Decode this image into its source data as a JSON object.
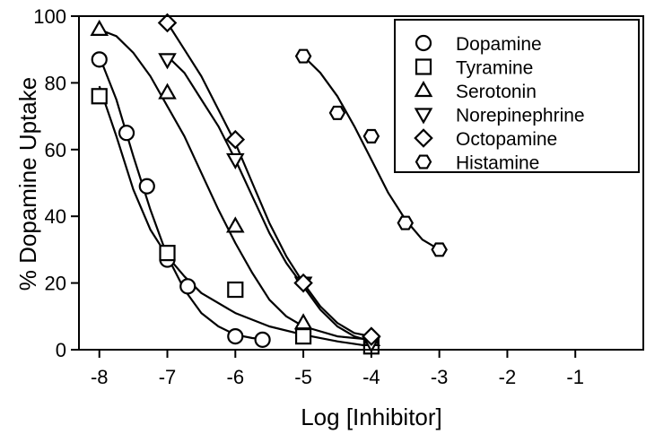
{
  "chart_data": {
    "type": "scatter",
    "title": "",
    "xlabel": "Log [Inhibitor]",
    "ylabel": "% Dopamine Uptake",
    "xlim": [
      -8.3,
      0
    ],
    "ylim": [
      0,
      100
    ],
    "xticks": [
      -8,
      -7,
      -6,
      -5,
      -4,
      -3,
      -2,
      -1
    ],
    "xtick_labels": [
      "-8",
      "-7",
      "-6",
      "-5",
      "-4",
      "-3",
      "-2",
      "-1"
    ],
    "yticks": [
      0,
      20,
      40,
      60,
      80,
      100
    ],
    "ytick_labels": [
      "0",
      "20",
      "40",
      "60",
      "80",
      "100"
    ],
    "grid": false,
    "legend_position": "top-right",
    "series": [
      {
        "name": "Dopamine",
        "marker": "circle",
        "points": [
          [
            -8,
            87
          ],
          [
            -7.6,
            65
          ],
          [
            -7.3,
            49
          ],
          [
            -7,
            27
          ],
          [
            -6.7,
            19
          ],
          [
            -6,
            4
          ],
          [
            -5.6,
            3
          ]
        ],
        "curve": [
          [
            -8,
            88
          ],
          [
            -7.75,
            75
          ],
          [
            -7.5,
            58
          ],
          [
            -7.25,
            42
          ],
          [
            -7,
            28
          ],
          [
            -6.75,
            18
          ],
          [
            -6.5,
            11
          ],
          [
            -6.25,
            7
          ],
          [
            -6,
            4.5
          ],
          [
            -5.75,
            3.5
          ],
          [
            -5.5,
            3
          ]
        ]
      },
      {
        "name": "Tyramine",
        "marker": "square",
        "points": [
          [
            -8,
            76
          ],
          [
            -7,
            29
          ],
          [
            -6,
            18
          ],
          [
            -5,
            4
          ],
          [
            -4,
            1
          ]
        ],
        "curve": [
          [
            -8,
            79
          ],
          [
            -7.75,
            64
          ],
          [
            -7.5,
            48
          ],
          [
            -7.25,
            36
          ],
          [
            -7,
            28
          ],
          [
            -6.75,
            22
          ],
          [
            -6.5,
            17
          ],
          [
            -6,
            11
          ],
          [
            -5.5,
            7
          ],
          [
            -5,
            4.5
          ],
          [
            -4.5,
            2.5
          ],
          [
            -4,
            1
          ]
        ]
      },
      {
        "name": "Serotonin",
        "marker": "triangle-up",
        "points": [
          [
            -8,
            96
          ],
          [
            -7,
            77
          ],
          [
            -6,
            37
          ],
          [
            -5,
            8
          ],
          [
            -4,
            3
          ]
        ],
        "curve": [
          [
            -8,
            96
          ],
          [
            -7.75,
            94
          ],
          [
            -7.5,
            89
          ],
          [
            -7.25,
            82
          ],
          [
            -7,
            73
          ],
          [
            -6.75,
            64
          ],
          [
            -6.5,
            53
          ],
          [
            -6.25,
            42
          ],
          [
            -6,
            32
          ],
          [
            -5.75,
            23
          ],
          [
            -5.5,
            15
          ],
          [
            -5.25,
            10
          ],
          [
            -5,
            7
          ],
          [
            -4.5,
            4
          ],
          [
            -4,
            3
          ]
        ]
      },
      {
        "name": "Norepinephrine",
        "marker": "triangle-down",
        "points": [
          [
            -7,
            87
          ],
          [
            -6,
            57
          ],
          [
            -5,
            20
          ],
          [
            -4,
            2
          ]
        ],
        "curve": [
          [
            -7,
            88
          ],
          [
            -6.75,
            83
          ],
          [
            -6.5,
            75
          ],
          [
            -6.25,
            67
          ],
          [
            -6,
            57
          ],
          [
            -5.75,
            46
          ],
          [
            -5.5,
            35
          ],
          [
            -5.25,
            26
          ],
          [
            -5,
            19
          ],
          [
            -4.75,
            12
          ],
          [
            -4.5,
            7
          ],
          [
            -4.25,
            4
          ],
          [
            -4,
            2.5
          ]
        ]
      },
      {
        "name": "Octopamine",
        "marker": "diamond",
        "points": [
          [
            -7,
            98
          ],
          [
            -6,
            63
          ],
          [
            -5,
            20
          ],
          [
            -4,
            4
          ]
        ],
        "curve": [
          [
            -7,
            98
          ],
          [
            -6.75,
            90
          ],
          [
            -6.5,
            82
          ],
          [
            -6.25,
            72
          ],
          [
            -6,
            62
          ],
          [
            -5.75,
            50
          ],
          [
            -5.5,
            38
          ],
          [
            -5.25,
            28
          ],
          [
            -5,
            20
          ],
          [
            -4.75,
            13
          ],
          [
            -4.5,
            8
          ],
          [
            -4.25,
            5
          ],
          [
            -4,
            4
          ]
        ]
      },
      {
        "name": "Histamine",
        "marker": "hexagon",
        "points": [
          [
            -5,
            88
          ],
          [
            -4.5,
            71
          ],
          [
            -4,
            64
          ],
          [
            -3.5,
            38
          ],
          [
            -3,
            30
          ]
        ],
        "curve": [
          [
            -5,
            88
          ],
          [
            -4.75,
            83
          ],
          [
            -4.5,
            76
          ],
          [
            -4.25,
            67
          ],
          [
            -4,
            57
          ],
          [
            -3.75,
            47
          ],
          [
            -3.5,
            39
          ],
          [
            -3.25,
            33
          ],
          [
            -3,
            30
          ]
        ]
      }
    ]
  }
}
